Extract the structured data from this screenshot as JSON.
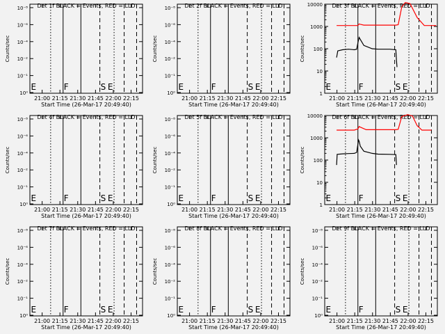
{
  "chart_data": {
    "type": "line",
    "series_legend": "BLACK = Events, RED = LLD",
    "ylabel": "Counts/sec",
    "xlabel": "Start Time (26-Mar-17 20:49:40)",
    "x_ticks": [
      "21:00",
      "21:15",
      "21:30",
      "21:45",
      "22:00",
      "22:15"
    ],
    "x_ticks_min": [
      10.33,
      25.33,
      40.33,
      55.33,
      70.33,
      85.33
    ],
    "xlim_min": [
      0,
      95
    ],
    "markers": [
      {
        "label": "E",
        "x_min": 0.3,
        "style": "none"
      },
      {
        "label": "F",
        "x_min": 28.0,
        "style": "solid"
      },
      {
        "label": "S",
        "x_min": 59.0,
        "style": "dashed"
      },
      {
        "label": "E",
        "x_min": 65.0,
        "style": "none"
      }
    ],
    "guides": [
      {
        "x_min": 17.5,
        "style": "dotted"
      },
      {
        "x_min": 43.0,
        "style": "solid"
      },
      {
        "x_min": 71.0,
        "style": "dotted"
      },
      {
        "x_min": 79.5,
        "style": "dashed"
      },
      {
        "x_min": 90.0,
        "style": "dashed"
      }
    ],
    "empty_ticks": [
      "10⁻⁸",
      "10⁻⁶",
      "10⁻⁴",
      "10⁻²",
      "10⁻¹",
      "10⁰"
    ],
    "log_ticks": [
      "10000",
      "1000",
      "100",
      "10",
      "1"
    ],
    "panels": [
      {
        "title": "Det 1f BLACK = Events, RED = LLD",
        "has_data": false,
        "series": []
      },
      {
        "title": "Det 2f BLACK = Events, RED = LLD",
        "has_data": false,
        "series": []
      },
      {
        "title": "Det 3f BLACK = Events, RED = LLD",
        "has_data": true,
        "ylim": [
          1,
          10000
        ],
        "series": [
          {
            "name": "LLD",
            "color": "#ff0000",
            "x": [
              10,
              20,
              25,
              28,
              29,
              30,
              33,
              60,
              62,
              65,
              68,
              72,
              78,
              84,
              94
            ],
            "y": [
              1100,
              1100,
              1100,
              1100,
              1300,
              1250,
              1150,
              1150,
              1200,
              7500,
              12000,
              10500,
              2500,
              1100,
              1100
            ]
          },
          {
            "name": "Events",
            "color": "#000000",
            "x": [
              10,
              11,
              15,
              20,
              25,
              27,
              28,
              29,
              30,
              33,
              40,
              45,
              55,
              60,
              60.5,
              61
            ],
            "y": [
              40,
              80,
              90,
              95,
              90,
              95,
              180,
              320,
              260,
              140,
              100,
              95,
              95,
              90,
              30,
              15
            ]
          }
        ]
      },
      {
        "title": "Det 4f BLACK = Events, RED = LLD",
        "has_data": false,
        "series": []
      },
      {
        "title": "Det 5f BLACK = Events, RED = LLD",
        "has_data": false,
        "series": []
      },
      {
        "title": "Det 6f BLACK = Events, RED = LLD",
        "has_data": true,
        "ylim": [
          1,
          10000
        ],
        "series": [
          {
            "name": "LLD",
            "color": "#ff0000",
            "x": [
              10,
              20,
              25,
              28,
              29,
              30,
              35,
              60,
              62,
              65,
              70,
              74,
              78,
              82,
              90
            ],
            "y": [
              2200,
              2200,
              2200,
              2500,
              3200,
              3000,
              2300,
              2300,
              2400,
              9000,
              11000,
              9500,
              3500,
              2200,
              2200
            ]
          },
          {
            "name": "Events",
            "color": "#000000",
            "x": [
              10,
              10.5,
              15,
              20,
              25,
              27,
              28,
              28.5,
              29,
              30,
              33,
              40,
              45,
              55,
              60,
              60.5
            ],
            "y": [
              60,
              180,
              190,
              195,
              200,
              220,
              500,
              800,
              700,
              420,
              250,
              200,
              185,
              180,
              175,
              60
            ]
          }
        ]
      },
      {
        "title": "Det 7f BLACK = Events, RED = LLD",
        "has_data": false,
        "series": []
      },
      {
        "title": "Det 8f BLACK = Events, RED = LLD",
        "has_data": false,
        "series": []
      },
      {
        "title": "Det 9f BLACK = Events, RED = LLD",
        "has_data": false,
        "series": []
      }
    ]
  }
}
